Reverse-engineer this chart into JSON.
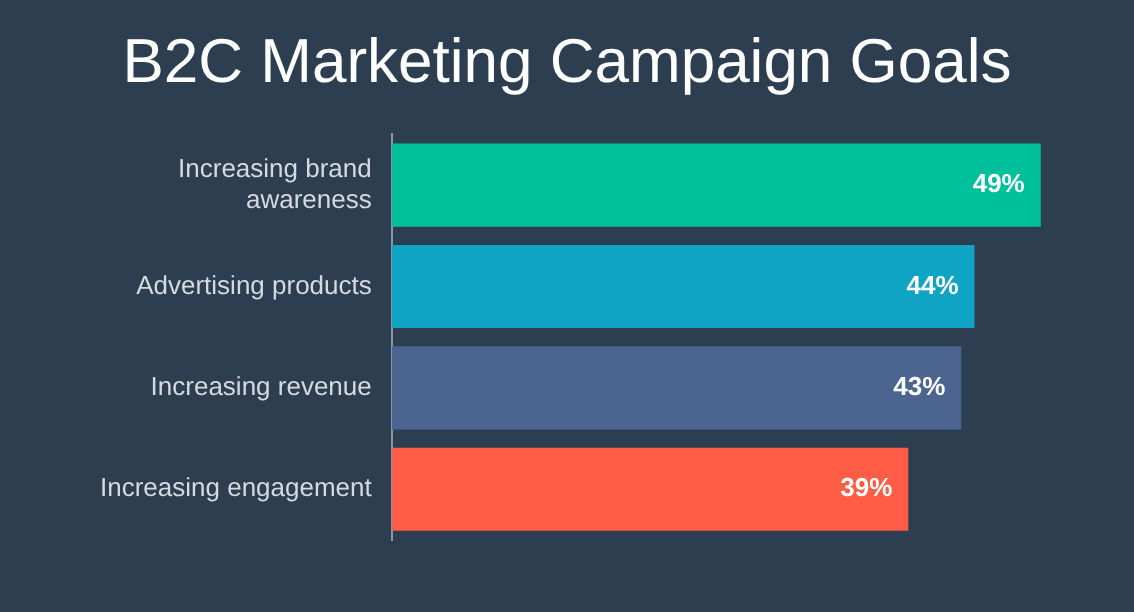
{
  "chart_data": {
    "type": "bar",
    "orientation": "horizontal",
    "title": "B2C Marketing Campaign Goals",
    "categories": [
      "Increasing brand awareness",
      "Advertising products",
      "Increasing revenue",
      "Increasing engagement"
    ],
    "values": [
      49,
      44,
      43,
      39
    ],
    "colors": [
      "#00bf9b",
      "#0fa3c4",
      "#4b6590",
      "#ff5d45"
    ],
    "value_labels": [
      "49%",
      "44%",
      "43%",
      "39%"
    ],
    "tick_labels": "y",
    "grid": false,
    "legend": false
  }
}
